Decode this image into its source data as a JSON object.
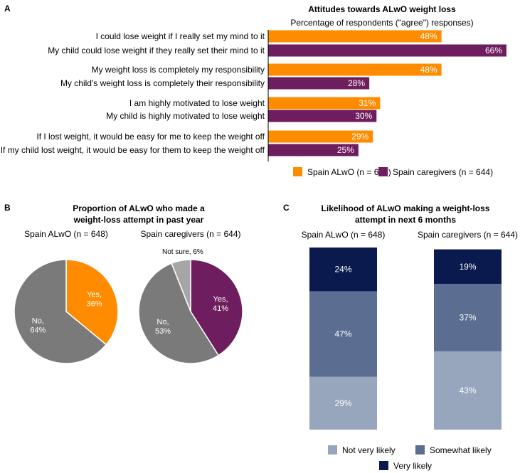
{
  "panels": {
    "a": {
      "letter": "A",
      "chart_data": {
        "type": "bar",
        "orientation": "horizontal",
        "title": "Attitudes towards ALwO weight loss",
        "subtitle": "Percentage of respondents (\"agree\") responses)",
        "unit": "%",
        "xlim": [
          0,
          66
        ],
        "categories": [
          "I could lose weight if I really set my mind to it",
          "My child could lose weight if they really set their mind to it",
          "My weight loss is completely my responsibility",
          "My child's weight loss is completely their responsibility",
          "I am highly motivated to lose weight",
          "My child is highly motivated to lose weight",
          "If I lost weight, it would be easy for me to keep the weight off",
          "If my child lost weight, it would be easy for them to keep the weight off"
        ],
        "values": [
          48,
          66,
          48,
          28,
          31,
          30,
          29,
          25
        ],
        "series_index": [
          0,
          1,
          0,
          1,
          0,
          1,
          0,
          1
        ],
        "series": [
          {
            "name": "Spain ALwO (n = 648)",
            "color": "#FF8C00"
          },
          {
            "name": "Spain caregivers (n = 644)",
            "color": "#6E1E5E"
          }
        ],
        "legend_position": "bottom-right",
        "grid": false
      }
    },
    "b": {
      "letter": "B",
      "title_lines": [
        "Proportion of ALwO who made a",
        "weight-loss attempt in past year"
      ],
      "chart_data": [
        {
          "type": "pie",
          "title": "Spain ALwO (n = 648)",
          "slices": [
            {
              "label": "Yes,",
              "value": 36,
              "value_text": "36%",
              "color": "#FF8C00"
            },
            {
              "label": "No,",
              "value": 64,
              "value_text": "64%",
              "color": "#7A7A7A"
            }
          ]
        },
        {
          "type": "pie",
          "title": "Spain caregivers (n = 644)",
          "slices": [
            {
              "label": "Yes,",
              "value": 41,
              "value_text": "41%",
              "color": "#6E1E5E"
            },
            {
              "label": "No,",
              "value": 53,
              "value_text": "53%",
              "color": "#7A7A7A"
            },
            {
              "label": "Not sure, 6%",
              "value": 6,
              "value_text": "",
              "color": "#A6A6A6"
            }
          ]
        }
      ]
    },
    "c": {
      "letter": "C",
      "title_lines": [
        "Likelihood of ALwO making a weight-loss",
        "attempt in next 6 months"
      ],
      "chart_data": {
        "type": "bar",
        "orientation": "vertical",
        "stacked": true,
        "categories": [
          "Spain ALwO (n = 648)",
          "Spain caregivers (n = 644)"
        ],
        "unit": "%",
        "ylim": [
          0,
          100
        ],
        "series": [
          {
            "name": "Not very likely",
            "color": "#97A6BD",
            "values": [
              29,
              43
            ]
          },
          {
            "name": "Somewhat likely",
            "color": "#5B6E91",
            "values": [
              47,
              37
            ]
          },
          {
            "name": "Very likely",
            "color": "#0B1A4E",
            "values": [
              24,
              19
            ]
          }
        ],
        "legend_position": "bottom",
        "grid": false
      }
    }
  }
}
